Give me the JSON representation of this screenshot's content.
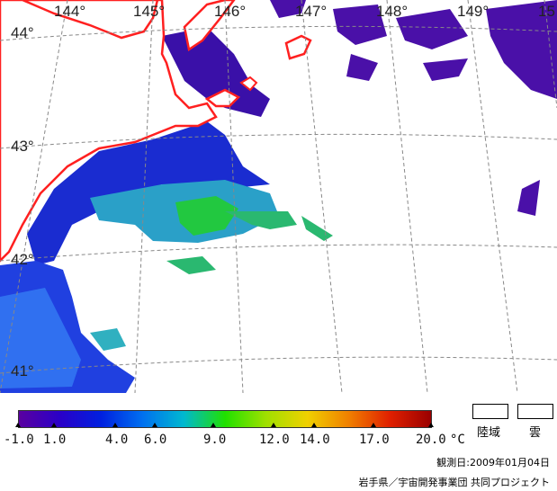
{
  "map": {
    "lon_labels": [
      "144°",
      "145°",
      "146°",
      "147°",
      "148°",
      "149°",
      "15"
    ],
    "lat_labels": [
      "44°",
      "43°",
      "42°",
      "41°"
    ],
    "colors": {
      "land_outline": "#ff2020",
      "gridline": "#888888",
      "cloud": "#ffffff",
      "sst_cold": "#4a00a0",
      "sst_mid_blue": "#1a3cd8",
      "sst_blue": "#2a5cf0",
      "sst_teal": "#30b8b8",
      "sst_green": "#22d030"
    }
  },
  "colorbar": {
    "ticks": [
      "-1.0",
      "1.0",
      "4.0",
      "6.0",
      "9.0",
      "12.0",
      "14.0",
      "17.0",
      "20.0"
    ],
    "unit": "°C",
    "gradient": [
      "#5a00a0",
      "#2a00c8",
      "#0020e0",
      "#0070f0",
      "#00b8d0",
      "#20e000",
      "#a0e000",
      "#f0d000",
      "#f08000",
      "#e02000",
      "#9a0000"
    ]
  },
  "legend": {
    "land_label": "陸域",
    "cloud_label": "雲"
  },
  "footer": {
    "observation_date": "観測日:2009年01月04日",
    "credit": "岩手県／宇宙開発事業団 共同プロジェクト"
  }
}
